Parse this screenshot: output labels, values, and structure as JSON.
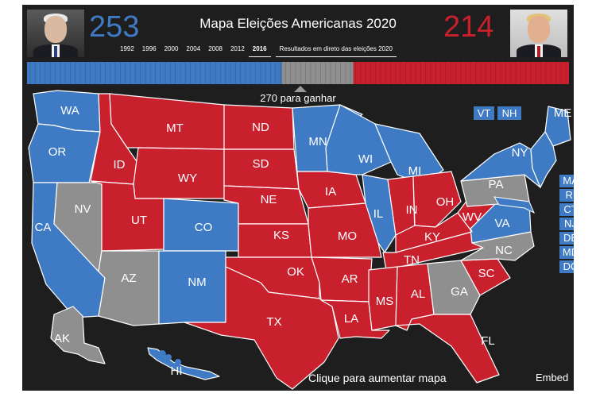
{
  "title": "Mapa Eleições Americanas 2020",
  "dem": {
    "votes": "253",
    "color": "#3f7bc4",
    "photo": "biden-photo"
  },
  "rep": {
    "votes": "214",
    "color": "#c9202e",
    "photo": "trump-photo"
  },
  "undecided_color": "#8f8f8f",
  "years": [
    "1992",
    "1996",
    "2000",
    "2004",
    "2008",
    "2012",
    "2016"
  ],
  "selected_year": "2016",
  "live_link": "Resultados em direto das eleições 2020",
  "threshold_label": "270 para ganhar",
  "progress_bar": {
    "dem": 253,
    "undecided": 71,
    "rep": 214,
    "total": 538
  },
  "states": [
    {
      "code": "WA",
      "status": "dem"
    },
    {
      "code": "OR",
      "status": "dem"
    },
    {
      "code": "CA",
      "status": "dem"
    },
    {
      "code": "NV",
      "status": "undecided"
    },
    {
      "code": "ID",
      "status": "rep"
    },
    {
      "code": "MT",
      "status": "rep"
    },
    {
      "code": "WY",
      "status": "rep"
    },
    {
      "code": "UT",
      "status": "rep"
    },
    {
      "code": "AZ",
      "status": "undecided"
    },
    {
      "code": "CO",
      "status": "dem"
    },
    {
      "code": "NM",
      "status": "dem"
    },
    {
      "code": "ND",
      "status": "rep"
    },
    {
      "code": "SD",
      "status": "rep"
    },
    {
      "code": "NE",
      "status": "rep"
    },
    {
      "code": "KS",
      "status": "rep"
    },
    {
      "code": "OK",
      "status": "rep"
    },
    {
      "code": "TX",
      "status": "rep"
    },
    {
      "code": "MN",
      "status": "dem"
    },
    {
      "code": "IA",
      "status": "rep"
    },
    {
      "code": "MO",
      "status": "rep"
    },
    {
      "code": "AR",
      "status": "rep"
    },
    {
      "code": "LA",
      "status": "rep"
    },
    {
      "code": "WI",
      "status": "dem"
    },
    {
      "code": "IL",
      "status": "dem"
    },
    {
      "code": "MI",
      "status": "dem"
    },
    {
      "code": "IN",
      "status": "rep"
    },
    {
      "code": "OH",
      "status": "rep"
    },
    {
      "code": "KY",
      "status": "rep"
    },
    {
      "code": "TN",
      "status": "rep"
    },
    {
      "code": "MS",
      "status": "rep"
    },
    {
      "code": "AL",
      "status": "rep"
    },
    {
      "code": "GA",
      "status": "undecided"
    },
    {
      "code": "FL",
      "status": "rep"
    },
    {
      "code": "SC",
      "status": "rep"
    },
    {
      "code": "NC",
      "status": "undecided"
    },
    {
      "code": "VA",
      "status": "dem"
    },
    {
      "code": "WV",
      "status": "rep"
    },
    {
      "code": "PA",
      "status": "undecided"
    },
    {
      "code": "NY",
      "status": "dem"
    },
    {
      "code": "ME",
      "status": "dem"
    },
    {
      "code": "VT",
      "status": "dem"
    },
    {
      "code": "NH",
      "status": "dem"
    },
    {
      "code": "AK",
      "status": "undecided"
    },
    {
      "code": "HI",
      "status": "dem"
    }
  ],
  "northeast_boxes": [
    "MA",
    "RI",
    "CT",
    "NJ",
    "DE",
    "MD",
    "DC"
  ],
  "top_boxes": [
    "VT",
    "NH"
  ],
  "click_hint": "Clique para aumentar mapa",
  "embed_label": "Embed"
}
